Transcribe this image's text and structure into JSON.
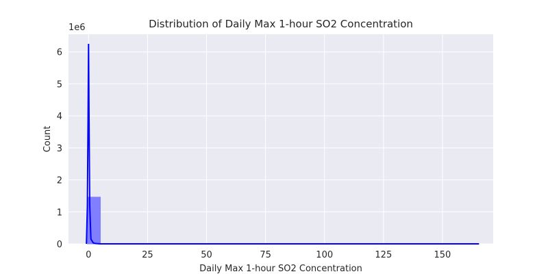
{
  "chart_data": {
    "type": "bar",
    "title": "Distribution of Daily Max 1-hour SO2 Concentration",
    "xlabel": "Daily Max 1-hour SO2 Concentration",
    "ylabel": "Count",
    "y_offset_label": "1e6",
    "xlim": [
      -8.5,
      171.5
    ],
    "ylim": [
      0,
      6.55
    ],
    "x_ticks": [
      0,
      25,
      50,
      75,
      100,
      125,
      150
    ],
    "y_ticks": [
      0,
      1,
      2,
      3,
      4,
      5,
      6
    ],
    "grid": true,
    "bins": [
      {
        "x0": -0.5,
        "x1": 5.0,
        "count": 1.46
      }
    ],
    "kde_curve": {
      "x": [
        -0.9,
        -0.5,
        -0.2,
        0.0,
        0.2,
        0.5,
        1.0,
        2.0,
        3.0,
        5.0,
        20.0,
        60.0,
        100.0,
        140.0,
        165.5
      ],
      "y": [
        0.0,
        1.2,
        4.0,
        6.25,
        4.0,
        1.2,
        0.15,
        0.03,
        0.01,
        0.0,
        0.0,
        0.0,
        0.0,
        0.0,
        0.0
      ]
    },
    "colors": {
      "background": "#eaeaf2",
      "grid": "#ffffff",
      "bar": "#7f7fff",
      "line": "#0000ff"
    }
  }
}
